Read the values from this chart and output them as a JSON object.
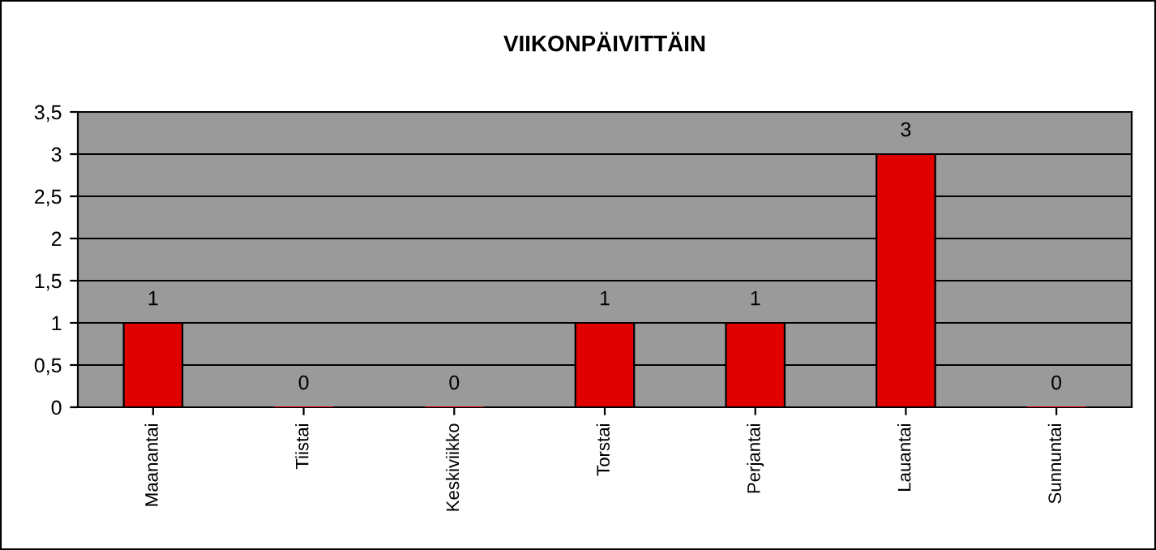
{
  "chart_data": {
    "type": "bar",
    "title": "VIIKONPÄIVITTÄIN",
    "categories": [
      "Maanantai",
      "Tiistai",
      "Keskiviikko",
      "Torstai",
      "Perjantai",
      "Lauantai",
      "Sunnuntai"
    ],
    "values": [
      1,
      0,
      0,
      1,
      1,
      3,
      0
    ],
    "color": "#e00000",
    "ylim": [
      0,
      3.5
    ],
    "yticks": [
      0,
      {
        "value": 0.5,
        "label": "0,5"
      },
      1,
      {
        "value": 1.5,
        "label": "1,5"
      },
      2,
      {
        "value": 2.5,
        "label": "2,5"
      },
      3,
      {
        "value": 3.5,
        "label": "3,5"
      }
    ],
    "grid": "y",
    "data_labels": true,
    "legend": false
  }
}
